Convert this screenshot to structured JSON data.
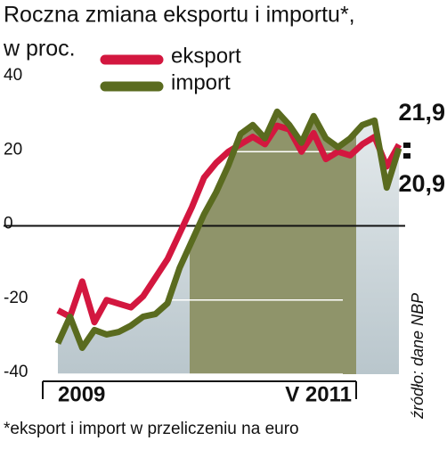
{
  "chart_data": {
    "type": "line",
    "title": "Roczna zmiana eksportu i importu*,",
    "subtitle": "w proc.",
    "note": "*eksport i import w przeliczeniu na euro",
    "source": "źródło: dane NBP",
    "categories": [
      "2009",
      null,
      null,
      null,
      null,
      null,
      null,
      null,
      null,
      null,
      null,
      null,
      null,
      null,
      null,
      null,
      null,
      null,
      null,
      null,
      null,
      null,
      null,
      null,
      "V 2011",
      null,
      null,
      null,
      null
    ],
    "series": [
      {
        "name": "eksport",
        "color": "#d3173f",
        "values": [
          -22.8,
          -24.5,
          -15,
          -26,
          -20,
          -21,
          -22,
          -19,
          -14,
          -9,
          -2,
          5,
          13,
          17,
          20,
          22,
          24,
          22,
          27,
          26,
          20,
          25,
          18,
          20,
          19,
          22,
          24,
          16,
          21.9
        ],
        "value_labels": [
          null,
          null,
          null,
          null,
          null,
          null,
          null,
          null,
          null,
          null,
          null,
          null,
          null,
          null,
          null,
          null,
          null,
          null,
          null,
          null,
          null,
          null,
          null,
          null,
          null,
          null,
          null,
          null,
          "21,9"
        ]
      },
      {
        "name": "import",
        "color": "#5a6b1f",
        "values": [
          -31.7,
          -24.5,
          -32.9,
          -28.1,
          -29.3,
          -28.6,
          -26.9,
          -24.5,
          -23.8,
          -20.9,
          -11.3,
          -4.1,
          3.1,
          9.1,
          16.3,
          24.8,
          27.2,
          23.6,
          30.8,
          27.2,
          22.4,
          29.6,
          23.6,
          21.2,
          23.6,
          27.2,
          28.4,
          10.3,
          20.9
        ],
        "value_labels": [
          null,
          null,
          null,
          null,
          null,
          null,
          null,
          null,
          null,
          null,
          null,
          null,
          null,
          null,
          null,
          null,
          null,
          null,
          null,
          null,
          null,
          null,
          null,
          null,
          null,
          null,
          null,
          null,
          "20,9"
        ]
      }
    ],
    "ylim": [
      -40,
      40
    ],
    "yticks": [
      -40,
      -20,
      0,
      20,
      40
    ],
    "legend": "top-left"
  }
}
